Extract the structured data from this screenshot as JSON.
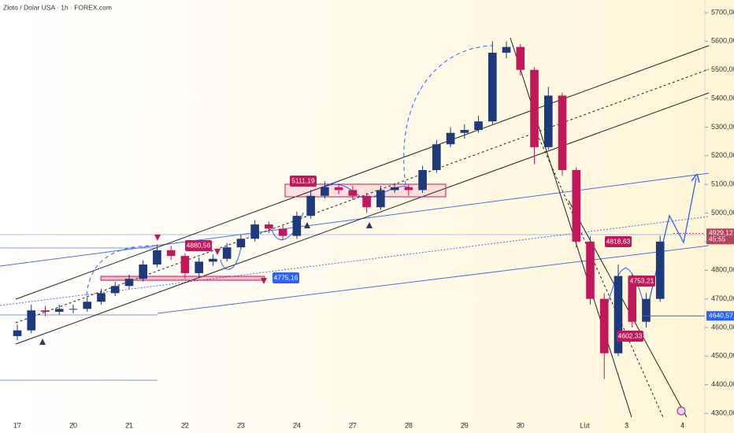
{
  "chart_data": {
    "type": "candlestick",
    "title": "Złoto / Dolar USA · 1h · FOREX.com",
    "up_color": "#1f3a7a",
    "down_color": "#c2185b",
    "x": [
      0,
      0.25,
      0.5,
      0.75,
      1,
      1.25,
      1.5,
      1.75,
      2,
      2.25,
      2.5,
      2.75,
      3,
      3.25,
      3.5,
      3.75,
      4,
      4.25,
      4.5,
      4.75,
      5,
      5.25,
      5.5,
      5.75,
      6,
      6.25,
      6.5,
      6.75,
      7,
      7.25,
      7.5,
      7.75,
      8,
      8.25,
      8.5,
      8.75,
      9,
      9.25,
      9.5,
      9.75,
      10,
      10.25,
      10.5,
      10.75,
      11,
      11.25,
      11.5
    ],
    "open": [
      4570,
      4590,
      4660,
      4655,
      4665,
      4665,
      4690,
      4720,
      4745,
      4770,
      4820,
      4870,
      4850,
      4790,
      4830,
      4840,
      4880,
      4910,
      4960,
      4945,
      4920,
      4990,
      5060,
      5090,
      5080,
      5060,
      5020,
      5080,
      5090,
      5080,
      5150,
      5240,
      5280,
      5290,
      5320,
      5560,
      5580,
      5500,
      5230,
      5410,
      5150,
      4900,
      4700,
      4510,
      4780,
      4620,
      4700
    ],
    "high": [
      4610,
      4680,
      4675,
      4680,
      4680,
      4705,
      4735,
      4760,
      4785,
      4835,
      4890,
      4885,
      4860,
      4845,
      4855,
      4895,
      4925,
      4975,
      4970,
      4955,
      5005,
      5080,
      5110,
      5100,
      5095,
      5070,
      5095,
      5105,
      5100,
      5165,
      5255,
      5300,
      5310,
      5340,
      5600,
      5600,
      5590,
      5510,
      5440,
      5420,
      5160,
      4920,
      4720,
      4820,
      4790,
      4720,
      4920
    ],
    "low": [
      4555,
      4580,
      4640,
      4645,
      4650,
      4655,
      4680,
      4710,
      4735,
      4760,
      4810,
      4835,
      4770,
      4775,
      4815,
      4830,
      4870,
      4900,
      4930,
      4905,
      4910,
      4980,
      5050,
      5065,
      5045,
      5000,
      5010,
      5070,
      5060,
      5070,
      5140,
      5230,
      5260,
      5280,
      5310,
      5540,
      5480,
      5170,
      5220,
      5130,
      4880,
      4680,
      4420,
      4500,
      4600,
      4600,
      4690
    ],
    "close": [
      4590,
      4660,
      4655,
      4665,
      4665,
      4690,
      4720,
      4745,
      4770,
      4820,
      4870,
      4850,
      4790,
      4830,
      4840,
      4880,
      4910,
      4960,
      4945,
      4920,
      4990,
      5060,
      5090,
      5080,
      5060,
      5020,
      5080,
      5090,
      5080,
      5150,
      5240,
      5280,
      5290,
      5320,
      5560,
      5580,
      5500,
      5230,
      5410,
      5150,
      4900,
      4700,
      4510,
      4780,
      4620,
      4700,
      4900
    ],
    "xlim": [
      -0.31,
      12.3
    ],
    "xticks": [
      {
        "value": 0,
        "label": "17"
      },
      {
        "value": 1,
        "label": "20"
      },
      {
        "value": 2,
        "label": "21"
      },
      {
        "value": 3,
        "label": "22"
      },
      {
        "value": 4,
        "label": "23"
      },
      {
        "value": 5,
        "label": "24"
      },
      {
        "value": 6,
        "label": "27"
      },
      {
        "value": 7,
        "label": "28"
      },
      {
        "value": 8,
        "label": "29"
      },
      {
        "value": 9,
        "label": "30"
      },
      {
        "value": 10.15,
        "label": "Lut"
      },
      {
        "value": 10.9,
        "label": "3"
      },
      {
        "value": 11.9,
        "label": "4"
      }
    ],
    "ylim": [
      4259,
      5744
    ],
    "yticks": [
      {
        "value": 4300,
        "label": "4300,00"
      },
      {
        "value": 4400,
        "label": "4400,00"
      },
      {
        "value": 4500,
        "label": "4500,00"
      },
      {
        "value": 4600,
        "label": "4600,00"
      },
      {
        "value": 4700,
        "label": "4700,00"
      },
      {
        "value": 4800,
        "label": "4800,00"
      },
      {
        "value": 4900,
        "label": "4900,00"
      },
      {
        "value": 5000,
        "label": "5000,00"
      },
      {
        "value": 5100,
        "label": "5100,00"
      },
      {
        "value": 5200,
        "label": "5200,00"
      },
      {
        "value": 5300,
        "label": "5300,00"
      },
      {
        "value": 5400,
        "label": "5400,00"
      },
      {
        "value": 5500,
        "label": "5500,00"
      },
      {
        "value": 5600,
        "label": "5600,00"
      },
      {
        "value": 5700,
        "label": "5700,00"
      }
    ],
    "annotations": [
      "5111,19",
      "4880,56",
      "4775,16",
      "4818,63",
      "4753,21",
      "4602,33"
    ],
    "price_tags": [
      {
        "value": 4929.12,
        "label": "4929,12",
        "countdown": "45:55",
        "color": "#b5455e"
      },
      {
        "value": 4640.57,
        "label": "4640,57",
        "color": "#2962ff"
      }
    ]
  }
}
